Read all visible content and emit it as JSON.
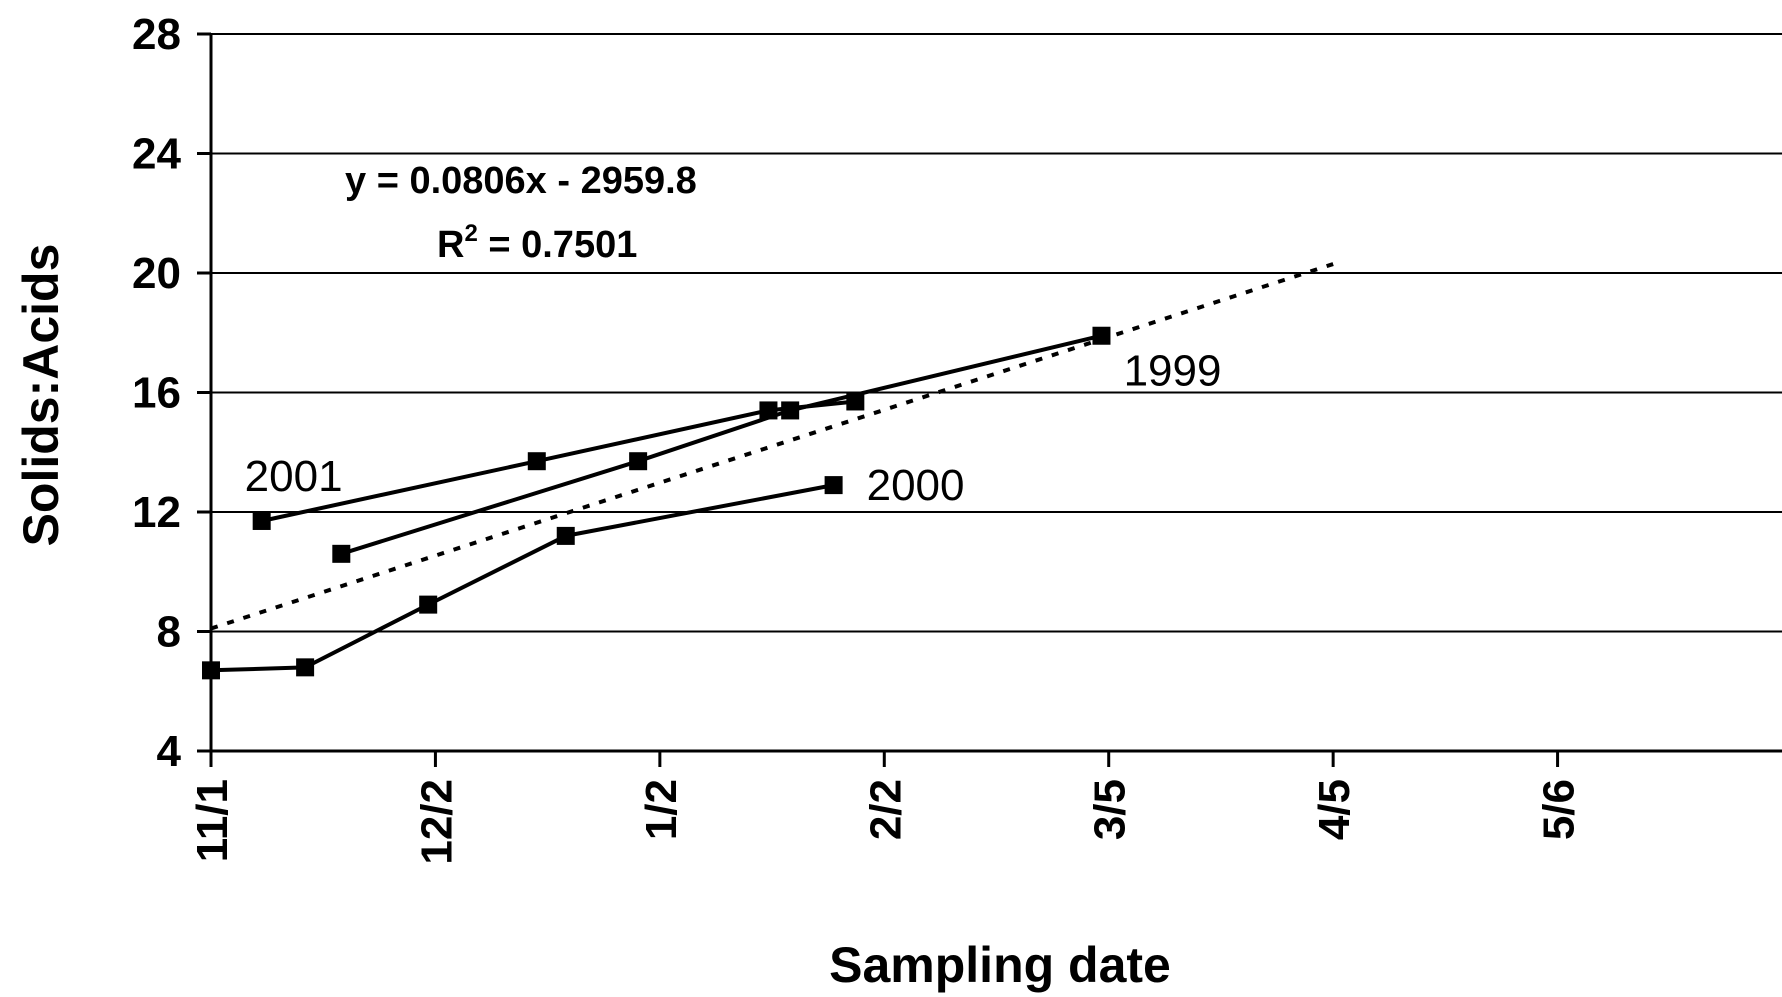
{
  "chart_data": {
    "type": "line",
    "xlabel": "Sampling date",
    "ylabel": "Solids:Acids",
    "ylim": [
      4,
      28
    ],
    "yticks": [
      4,
      8,
      12,
      16,
      20,
      24,
      28
    ],
    "xlim": [
      "11/1",
      "6/6"
    ],
    "xticks": [
      {
        "label": "11/1",
        "date": "11/1"
      },
      {
        "label": "12/2",
        "date": "12/2"
      },
      {
        "label": "1/2",
        "date": "1/2"
      },
      {
        "label": "2/2",
        "date": "2/2"
      },
      {
        "label": "3/5",
        "date": "3/5"
      },
      {
        "label": "4/5",
        "date": "4/5"
      },
      {
        "label": "5/6",
        "date": "5/6"
      }
    ],
    "grid": "horizontal",
    "series": [
      {
        "name": "1999",
        "points": [
          {
            "x": "11/19",
            "y": 10.6
          },
          {
            "x": "12/30",
            "y": 13.7
          },
          {
            "x": "1/20",
            "y": 15.4
          },
          {
            "x": "3/4",
            "y": 17.9
          }
        ]
      },
      {
        "name": "2000",
        "points": [
          {
            "x": "11/1",
            "y": 6.7
          },
          {
            "x": "11/14",
            "y": 6.8
          },
          {
            "x": "12/1",
            "y": 8.9
          },
          {
            "x": "12/20",
            "y": 11.2
          },
          {
            "x": "1/26",
            "y": 12.9
          }
        ]
      },
      {
        "name": "2001",
        "points": [
          {
            "x": "11/8",
            "y": 11.7
          },
          {
            "x": "12/16",
            "y": 13.7
          },
          {
            "x": "1/17",
            "y": 15.4
          },
          {
            "x": "1/29",
            "y": 15.7
          }
        ]
      }
    ],
    "trendline": {
      "style": "dotted",
      "equation": "y = 0.0806x - 2959.8",
      "r2_prefix": "R",
      "r2_exponent": "2",
      "r2_value": " = 0.7501",
      "points": [
        {
          "x": "11/1",
          "y": 8.1
        },
        {
          "x": "4/5",
          "y": 20.3
        }
      ]
    }
  }
}
